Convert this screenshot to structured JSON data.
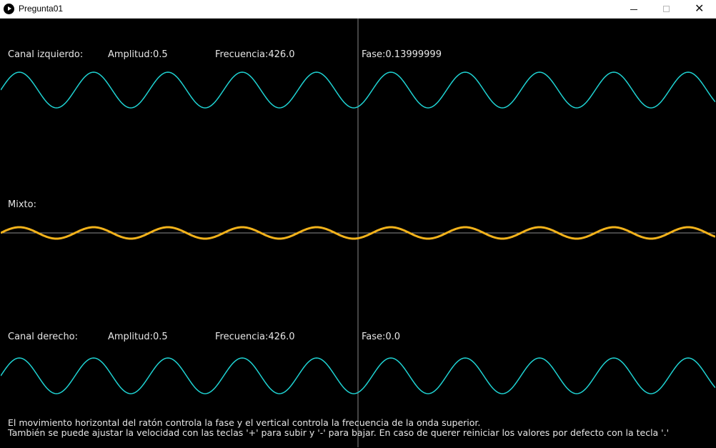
{
  "window": {
    "title": "Pregunta01",
    "icon": "play-icon"
  },
  "left_channel": {
    "label": "Canal izquierdo:",
    "amplitude": "Amplitud:0.5",
    "frequency": "Frecuencia:426.0",
    "phase": "Fase:0.13999999"
  },
  "mix": {
    "label": "Mixto:"
  },
  "right_channel": {
    "label": "Canal derecho:",
    "amplitude": "Amplitud:0.5",
    "frequency": "Frecuencia:426.0",
    "phase": "Fase:0.0"
  },
  "instructions": {
    "line1": "El movimiento horizontal del ratón controla la fase y el vertical controla la frecuencia de la onda superior.",
    "line2": "También se puede ajustar la velocidad con las teclas '+' para subir y '-' para bajar. En caso de querer reiniciar los valores por defecto con la tecla '.'"
  },
  "colors": {
    "background": "#000000",
    "channel_wave": "#1fd3d3",
    "mix_wave": "#f2b21b",
    "guide_line": "#8a8a8a",
    "text": "#e6e6e6"
  }
}
